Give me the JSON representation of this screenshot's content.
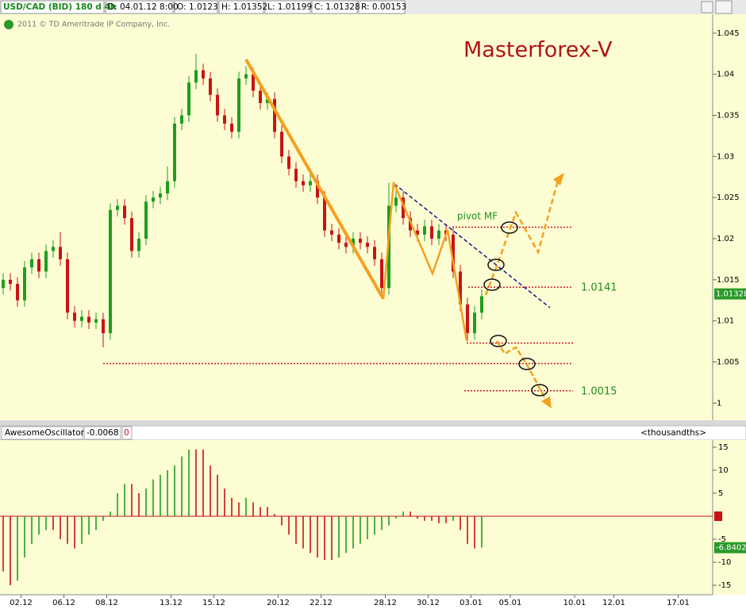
{
  "header": {
    "symbol": "USD/CAD (BID) 180 d 4h",
    "date": "D: 04.01.12 8:00",
    "open": "O: 1.0123",
    "high": "H: 1.01352",
    "low": "L: 1.01199",
    "close": "C: 1.01328",
    "range": "R: 0.00153",
    "copyright": "2011 © TD Ameritrade IP Company, Inc."
  },
  "chart_data": [
    {
      "type": "candlestick",
      "title": "Masterforex-V",
      "annotation": "pivot MF",
      "up_color": "#1e9e1e",
      "down_color": "#c81414",
      "last_value": 1.01328,
      "xlim": [
        -1,
        199
      ],
      "ylim": [
        0.9981,
        1.0473
      ],
      "yticks": [
        1.045,
        1.04,
        1.035,
        1.03,
        1.025,
        1.02,
        1.015,
        1.01,
        1.005,
        1
      ],
      "levels": [
        1.0214,
        1.0141,
        1.0073,
        1.0048,
        1.0015
      ],
      "level_labels": [
        null,
        "1.0141",
        null,
        null,
        "1.0015"
      ],
      "x": [
        0,
        2,
        4,
        6,
        8,
        10,
        12,
        14,
        16,
        18,
        20,
        22,
        24,
        26,
        28,
        30,
        32,
        34,
        36,
        38,
        40,
        42,
        44,
        46,
        48,
        50,
        52,
        54,
        56,
        58,
        60,
        62,
        64,
        66,
        68,
        70,
        72,
        74,
        76,
        78,
        80,
        82,
        84,
        86,
        88,
        90,
        92,
        94,
        96,
        98,
        100,
        102,
        104,
        106,
        108,
        110,
        112,
        114,
        116,
        118,
        120,
        122,
        124,
        126,
        128,
        130,
        132,
        134
      ],
      "open": [
        1.014,
        1.015,
        1.0145,
        1.0125,
        1.0165,
        1.0175,
        1.016,
        1.0185,
        1.019,
        1.0175,
        1.011,
        1.01,
        1.0105,
        1.0098,
        1.0102,
        1.0085,
        1.0235,
        1.024,
        1.0225,
        1.0185,
        1.02,
        1.0245,
        1.025,
        1.0255,
        1.027,
        1.034,
        1.035,
        1.039,
        1.0405,
        1.0395,
        1.0375,
        1.035,
        1.034,
        1.033,
        1.0395,
        1.04,
        1.038,
        1.0365,
        1.037,
        1.033,
        1.03,
        1.0285,
        1.027,
        1.0265,
        1.027,
        1.025,
        1.021,
        1.0205,
        1.0195,
        1.019,
        1.02,
        1.0195,
        1.019,
        1.0175,
        1.014,
        1.024,
        1.025,
        1.0225,
        1.021,
        1.0205,
        1.0215,
        1.02,
        1.021,
        1.0205,
        1.016,
        1.012,
        1.0085,
        1.011
      ],
      "high": [
        1.0158,
        1.0158,
        1.0153,
        1.0173,
        1.0183,
        1.0183,
        1.0193,
        1.0198,
        1.0208,
        1.0183,
        1.0118,
        1.0113,
        1.0113,
        1.011,
        1.011,
        1.0243,
        1.0248,
        1.0248,
        1.0233,
        1.0208,
        1.0253,
        1.0258,
        1.0263,
        1.0288,
        1.0348,
        1.0358,
        1.0398,
        1.0425,
        1.0413,
        1.0403,
        1.0383,
        1.0358,
        1.0348,
        1.0403,
        1.041,
        1.0408,
        1.0388,
        1.0378,
        1.0378,
        1.0338,
        1.0308,
        1.0293,
        1.0278,
        1.0278,
        1.0278,
        1.0258,
        1.0218,
        1.0213,
        1.0203,
        1.0208,
        1.0208,
        1.0203,
        1.0198,
        1.0183,
        1.0268,
        1.0258,
        1.0258,
        1.0233,
        1.0218,
        1.0223,
        1.0223,
        1.0218,
        1.0218,
        1.0213,
        1.0168,
        1.0128,
        1.0118,
        1.0138
      ],
      "low": [
        1.0132,
        1.0137,
        1.0117,
        1.0117,
        1.0157,
        1.0152,
        1.0152,
        1.0177,
        1.0167,
        1.0102,
        1.0092,
        1.0092,
        1.009,
        1.009,
        1.0068,
        1.0077,
        1.0227,
        1.0217,
        1.0177,
        1.0177,
        1.0192,
        1.0237,
        1.0242,
        1.0247,
        1.0262,
        1.0332,
        1.0342,
        1.0382,
        1.0387,
        1.0367,
        1.0342,
        1.0332,
        1.0322,
        1.0322,
        1.0387,
        1.0372,
        1.0357,
        1.0357,
        1.0322,
        1.0292,
        1.0277,
        1.0262,
        1.0257,
        1.0257,
        1.0242,
        1.0202,
        1.0197,
        1.0187,
        1.0182,
        1.0182,
        1.0187,
        1.0182,
        1.0167,
        1.0128,
        1.0132,
        1.0232,
        1.0217,
        1.0202,
        1.0197,
        1.0197,
        1.0192,
        1.0192,
        1.0197,
        1.0152,
        1.0112,
        1.0075,
        1.0077,
        1.0102
      ],
      "close": [
        1.015,
        1.0145,
        1.0125,
        1.0165,
        1.0175,
        1.016,
        1.0185,
        1.019,
        1.0175,
        1.011,
        1.01,
        1.0105,
        1.0098,
        1.0102,
        1.0085,
        1.0235,
        1.024,
        1.0225,
        1.0185,
        1.02,
        1.0245,
        1.025,
        1.0255,
        1.027,
        1.034,
        1.035,
        1.039,
        1.0405,
        1.0395,
        1.0375,
        1.035,
        1.034,
        1.033,
        1.0395,
        1.04,
        1.038,
        1.0365,
        1.037,
        1.033,
        1.03,
        1.0285,
        1.027,
        1.0265,
        1.027,
        1.025,
        1.021,
        1.0205,
        1.0195,
        1.019,
        1.02,
        1.0195,
        1.019,
        1.0175,
        1.014,
        1.024,
        1.025,
        1.0225,
        1.021,
        1.0205,
        1.0215,
        1.02,
        1.021,
        1.0205,
        1.016,
        1.012,
        1.0085,
        1.011,
        1.013
      ]
    },
    {
      "type": "bar",
      "name": "AwesomeOscillator",
      "indicator_value": -0.0068,
      "indicator_setting": 0,
      "units": "<thousandths>",
      "last_value": -6.8402,
      "up_color": "#1e9e1e",
      "down_color": "#c81414",
      "zero_color": "#c81414",
      "xlim": [
        -1,
        199
      ],
      "ylim": [
        -16.2,
        16.2
      ],
      "yticks": [
        15,
        10,
        5,
        -5,
        -10,
        -15
      ],
      "xticks": [
        {
          "value": 5,
          "label": "02.12"
        },
        {
          "value": 17,
          "label": "06.12"
        },
        {
          "value": 29,
          "label": "08.12"
        },
        {
          "value": 47,
          "label": "13.12"
        },
        {
          "value": 59,
          "label": "15.12"
        },
        {
          "value": 77,
          "label": "20.12"
        },
        {
          "value": 89,
          "label": "22.12"
        },
        {
          "value": 107,
          "label": "28.12"
        },
        {
          "value": 119,
          "label": "30.12"
        },
        {
          "value": 131,
          "label": "03.01"
        },
        {
          "value": 142,
          "label": "05.01"
        },
        {
          "value": 160,
          "label": "10.01"
        },
        {
          "value": 171,
          "label": "12.01"
        },
        {
          "value": 189,
          "label": "17.01"
        }
      ],
      "x": [
        0,
        2,
        4,
        6,
        8,
        10,
        12,
        14,
        16,
        18,
        20,
        22,
        24,
        26,
        28,
        30,
        32,
        34,
        36,
        38,
        40,
        42,
        44,
        46,
        48,
        50,
        52,
        54,
        56,
        58,
        60,
        62,
        64,
        66,
        68,
        70,
        72,
        74,
        76,
        78,
        80,
        82,
        84,
        86,
        88,
        90,
        92,
        94,
        96,
        98,
        100,
        102,
        104,
        106,
        108,
        110,
        112,
        114,
        116,
        118,
        120,
        122,
        124,
        126,
        128,
        130,
        132,
        134
      ],
      "values": [
        -12,
        -15,
        -14,
        -9,
        -6,
        -4,
        -3,
        -3,
        -5,
        -6,
        -7,
        -6,
        -4,
        -3,
        -1,
        1,
        5,
        7,
        7,
        5,
        6,
        8,
        9,
        10,
        11,
        13,
        14.5,
        14.5,
        14.5,
        11,
        9,
        6,
        4,
        3,
        4,
        3,
        2,
        2,
        0.5,
        -2,
        -4,
        -6,
        -7,
        -8,
        -9,
        -9.5,
        -9.5,
        -9,
        -8,
        -7,
        -6,
        -5,
        -4,
        -3,
        -2,
        -0.5,
        1,
        1,
        -0.5,
        -1,
        -1,
        -1.5,
        -1.5,
        -1,
        -3,
        -6,
        -7,
        -6.8
      ]
    }
  ]
}
